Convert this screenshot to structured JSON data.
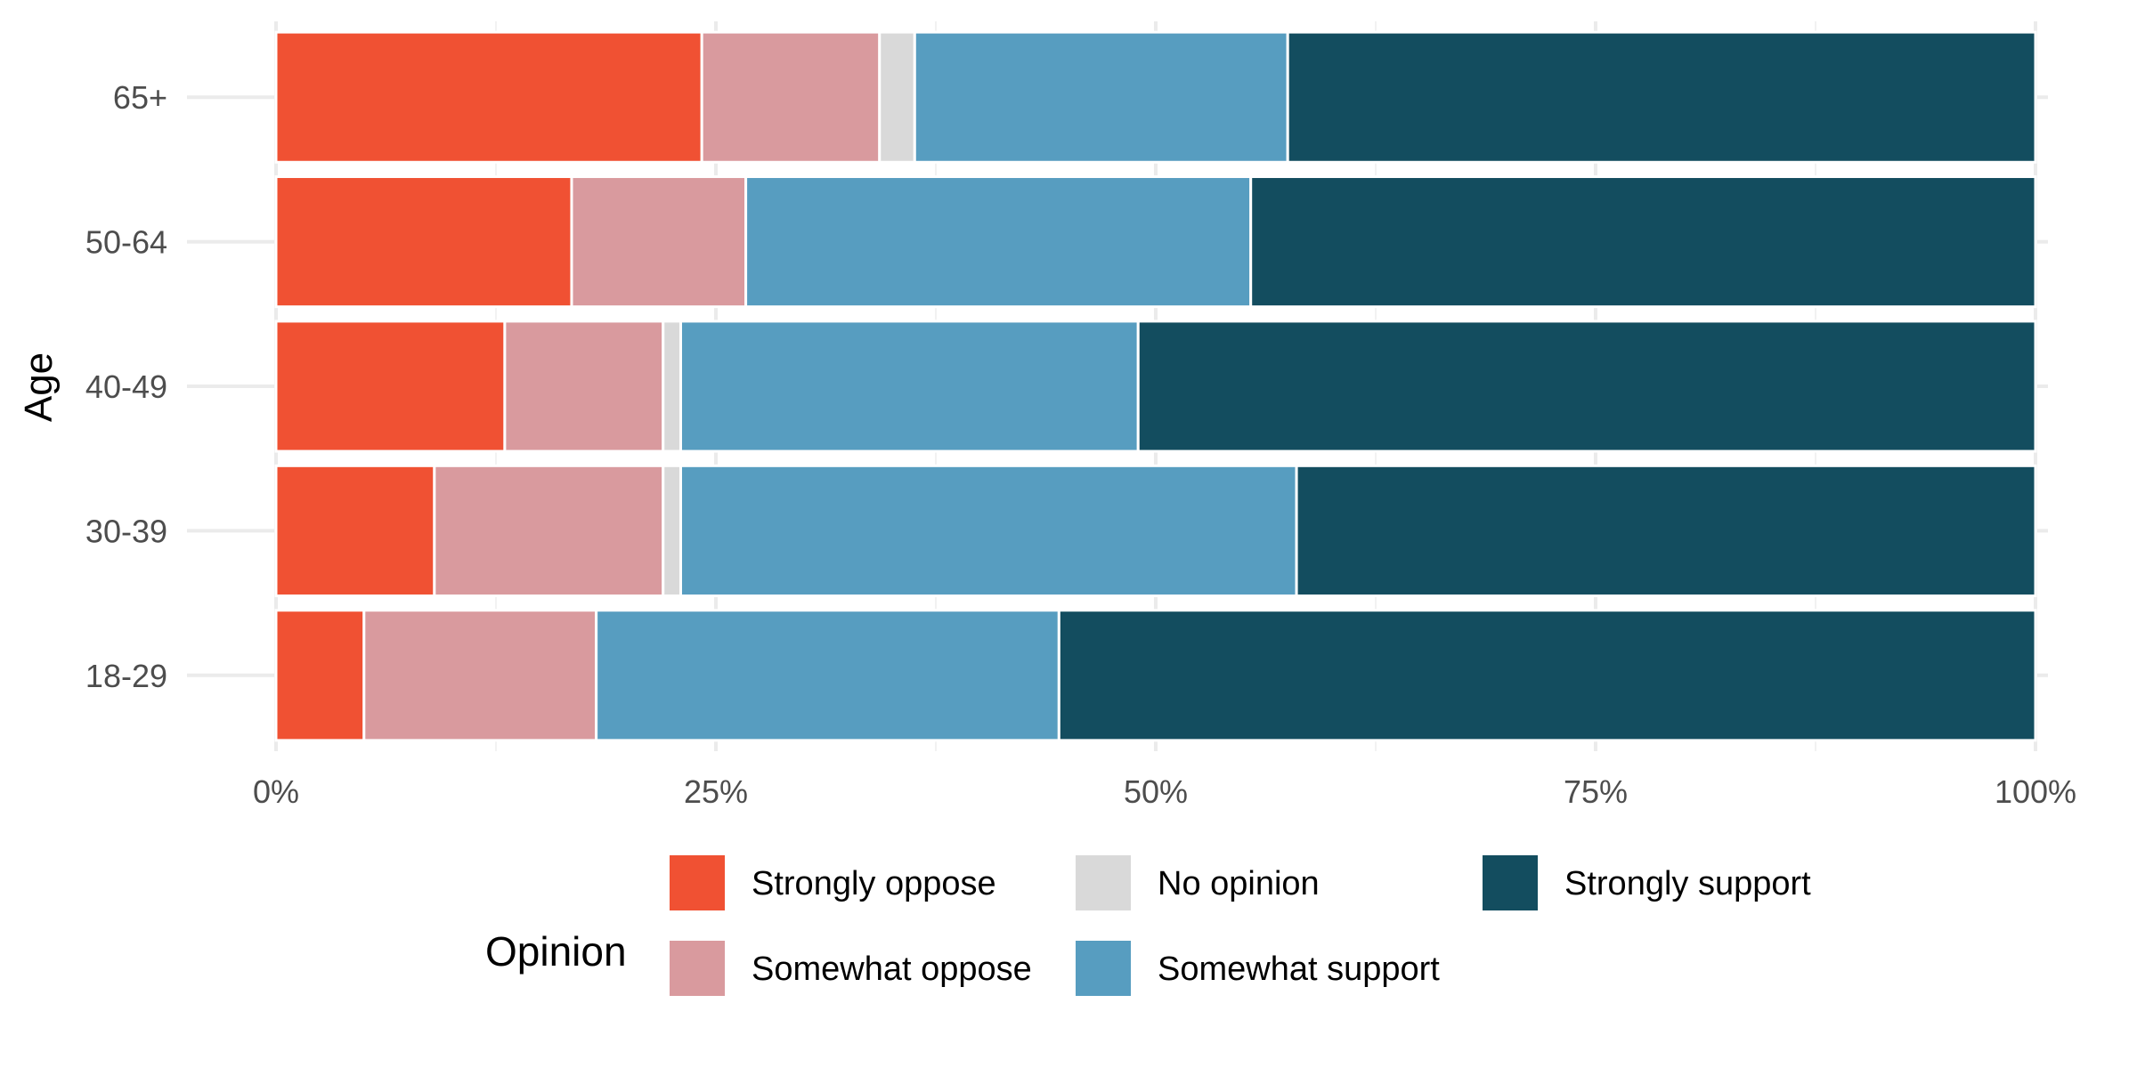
{
  "chart_data": {
    "type": "bar",
    "orientation": "horizontal",
    "stacked": "percent",
    "title": "",
    "xlabel": "",
    "ylabel": "Age",
    "xlim": [
      0,
      100
    ],
    "x_ticks": [
      0,
      25,
      50,
      75,
      100
    ],
    "x_tick_labels": [
      "0%",
      "25%",
      "50%",
      "75%",
      "100%"
    ],
    "categories": [
      "18-29",
      "30-39",
      "40-49",
      "50-64",
      "65+"
    ],
    "series": [
      {
        "name": "Strongly oppose",
        "color": "#F05133",
        "values": [
          5.0,
          9.0,
          13.0,
          16.8,
          24.2
        ]
      },
      {
        "name": "Somewhat oppose",
        "color": "#D99A9E",
        "values": [
          13.2,
          13.0,
          9.0,
          9.9,
          10.1
        ]
      },
      {
        "name": "No opinion",
        "color": "#D9D9D9",
        "values": [
          0.0,
          1.0,
          1.0,
          0.0,
          2.0
        ]
      },
      {
        "name": "Somewhat support",
        "color": "#579DC0",
        "values": [
          26.3,
          35.0,
          26.0,
          28.7,
          21.2
        ]
      },
      {
        "name": "Strongly support",
        "color": "#134D5F",
        "values": [
          55.5,
          42.0,
          51.0,
          44.6,
          42.5
        ]
      }
    ],
    "grid": true,
    "legend": {
      "title": "Opinion",
      "position": "bottom",
      "items": [
        "Strongly oppose",
        "Somewhat oppose",
        "No opinion",
        "Somewhat support",
        "Strongly support"
      ]
    }
  }
}
